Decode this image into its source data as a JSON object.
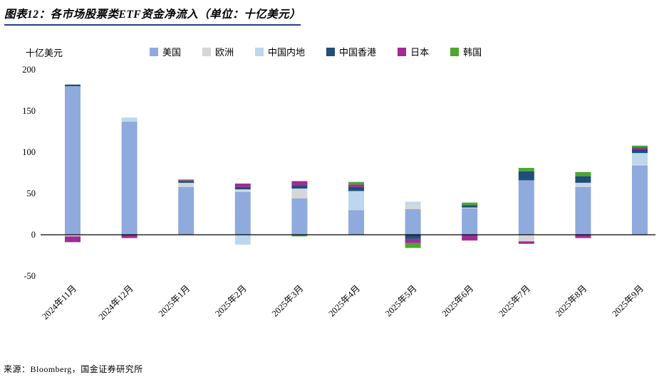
{
  "header": {
    "title": "图表12：各市场股票类ETF资金净流入（单位：十亿美元）"
  },
  "footer": {
    "source": "来源：Bloomberg，国金证券研究所"
  },
  "colors": {
    "title_underline": "#24418E",
    "axis_line": "#000000",
    "text": "#000000",
    "background": "#FFFFFF"
  },
  "chart_data": {
    "type": "bar",
    "stacked": true,
    "title": "各市场股票类ETF资金净流入",
    "y_unit_label": "十亿美元",
    "xlabel": "",
    "ylabel": "十亿美元",
    "ylim": [
      -50,
      200
    ],
    "y_ticks": [
      200,
      150,
      100,
      50,
      0,
      -50
    ],
    "grid": false,
    "legend_position": "top",
    "categories": [
      "2024年11月",
      "2024年12月",
      "2025年1月",
      "2025年2月",
      "2025年3月",
      "2025年4月",
      "2025年5月",
      "2025年6月",
      "2025年7月",
      "2025年8月",
      "2025年9月"
    ],
    "series": [
      {
        "name": "美国",
        "color": "#8FAADC",
        "values": [
          180,
          137,
          58,
          52,
          44,
          30,
          31,
          32,
          66,
          58,
          84
        ]
      },
      {
        "name": "欧洲",
        "color": "#D6D6D6",
        "values": [
          -2,
          0,
          3,
          3,
          10,
          1,
          5,
          1,
          -8,
          2,
          1
        ]
      },
      {
        "name": "中国内地",
        "color": "#BDD7EE",
        "values": [
          0,
          5,
          2,
          -12,
          2,
          22,
          4,
          0,
          0,
          3,
          14
        ]
      },
      {
        "name": "中国香港",
        "color": "#1F4E79",
        "values": [
          2,
          0,
          2,
          3,
          4,
          5,
          -5,
          3,
          11,
          8,
          5
        ]
      },
      {
        "name": "日本",
        "color": "#A02B93",
        "values": [
          -7,
          -4,
          1,
          4,
          5,
          3,
          -5,
          -7,
          -3,
          -4,
          2
        ]
      },
      {
        "name": "韩国",
        "color": "#4EA72E",
        "values": [
          0,
          0,
          1,
          0,
          -2,
          3,
          -6,
          3,
          4,
          5,
          2
        ]
      }
    ]
  }
}
